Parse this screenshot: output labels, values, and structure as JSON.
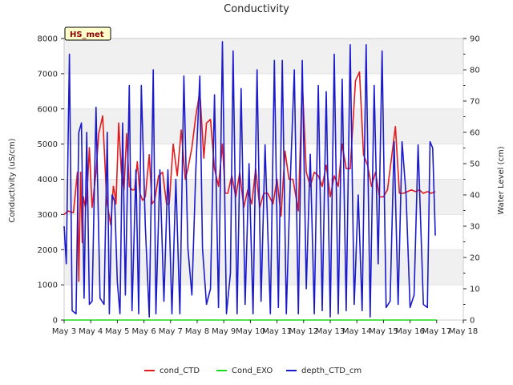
{
  "chart_data": {
    "type": "line",
    "title": "Conductivity",
    "badge": "HS_met",
    "ylabel": "Conductivity (uS/cm)",
    "y2label": "Water Level (cm)",
    "ylim": [
      0,
      8000
    ],
    "y2lim": [
      0,
      90
    ],
    "yticks": [
      0,
      1000,
      2000,
      3000,
      4000,
      5000,
      6000,
      7000,
      8000
    ],
    "y2ticks": [
      0,
      10,
      20,
      30,
      40,
      50,
      60,
      70,
      80,
      90
    ],
    "xlim": [
      3,
      18
    ],
    "xticks": [
      3,
      4,
      5,
      6,
      7,
      8,
      9,
      10,
      11,
      12,
      13,
      14,
      15,
      16,
      17,
      18
    ],
    "xtick_labels": [
      "May 3",
      "May 4",
      "May 5",
      "May 6",
      "May 7",
      "May 8",
      "May 9",
      "May 10",
      "May 11",
      "May 12",
      "May 13",
      "May 14",
      "May 15",
      "May 16",
      "May 17",
      "May 18"
    ],
    "grid": "horizontal bands",
    "legend_position": "bottom-center",
    "series": [
      {
        "name": "cond_CTD",
        "axis": "left",
        "color": "#e41a1c",
        "x": [
          3.0,
          3.15,
          3.35,
          3.5,
          3.55,
          3.62,
          3.68,
          3.72,
          3.8,
          3.85,
          3.95,
          4.05,
          4.2,
          4.3,
          4.45,
          4.6,
          4.75,
          4.85,
          4.9,
          4.95,
          5.05,
          5.15,
          5.25,
          5.35,
          5.45,
          5.55,
          5.65,
          5.75,
          5.85,
          5.95,
          6.05,
          6.2,
          6.3,
          6.4,
          6.55,
          6.7,
          6.85,
          6.95,
          7.1,
          7.25,
          7.4,
          7.55,
          7.65,
          7.8,
          7.95,
          8.1,
          8.25,
          8.35,
          8.5,
          8.65,
          8.8,
          8.95,
          9.05,
          9.15,
          9.3,
          9.45,
          9.6,
          9.75,
          9.9,
          10.05,
          10.2,
          10.35,
          10.5,
          10.65,
          10.85,
          11.0,
          11.15,
          11.3,
          11.45,
          11.6,
          11.8,
          11.95,
          12.1,
          12.25,
          12.4,
          12.55,
          12.7,
          12.85,
          13.0,
          13.15,
          13.3,
          13.45,
          13.6,
          13.75,
          13.95,
          14.1,
          14.25,
          14.4,
          14.55,
          14.7,
          14.85,
          15.0,
          15.15,
          15.3,
          15.45,
          15.6,
          15.75,
          15.9,
          16.05,
          16.2,
          16.35,
          16.5,
          16.65,
          16.8,
          16.95
        ],
        "values": [
          3000,
          3100,
          3050,
          4200,
          1100,
          4200,
          2200,
          3500,
          3200,
          3400,
          4900,
          3200,
          4200,
          5300,
          5800,
          3400,
          2700,
          3800,
          3600,
          3300,
          5600,
          4200,
          3700,
          5300,
          3800,
          3700,
          3700,
          4500,
          3600,
          3400,
          3500,
          4700,
          3300,
          3400,
          4100,
          4200,
          3300,
          3300,
          5000,
          4100,
          5400,
          4000,
          4300,
          4900,
          5800,
          6500,
          4600,
          5600,
          5700,
          4300,
          3800,
          5000,
          3600,
          3600,
          4100,
          3500,
          4200,
          3200,
          3700,
          3300,
          4300,
          3200,
          3600,
          3600,
          3300,
          4000,
          2950,
          4800,
          4000,
          4000,
          3100,
          6800,
          4200,
          3800,
          4200,
          4100,
          3800,
          4400,
          3500,
          4100,
          3800,
          5000,
          4300,
          4300,
          6800,
          7050,
          4700,
          4400,
          3800,
          4200,
          3500,
          3500,
          3700,
          4600,
          5500,
          3600,
          3600,
          3650,
          3700,
          3650,
          3700,
          3600,
          3650,
          3600,
          3650
        ]
      },
      {
        "name": "Cond_EXO",
        "axis": "left",
        "color": "#1ada1a",
        "x": [
          3,
          17
        ],
        "values": [
          0,
          0
        ]
      },
      {
        "name": "depth_CTD_cm",
        "axis": "right",
        "color": "#1a1acc",
        "x": [
          3.0,
          3.08,
          3.2,
          3.3,
          3.45,
          3.55,
          3.65,
          3.75,
          3.85,
          3.95,
          4.05,
          4.2,
          4.35,
          4.5,
          4.62,
          4.7,
          4.8,
          4.9,
          5.0,
          5.1,
          5.2,
          5.3,
          5.45,
          5.55,
          5.7,
          5.8,
          5.9,
          6.05,
          6.2,
          6.35,
          6.45,
          6.6,
          6.75,
          6.9,
          7.05,
          7.2,
          7.35,
          7.5,
          7.65,
          7.8,
          7.95,
          8.1,
          8.2,
          8.35,
          8.5,
          8.65,
          8.8,
          8.95,
          9.1,
          9.25,
          9.35,
          9.5,
          9.65,
          9.8,
          9.95,
          10.1,
          10.25,
          10.4,
          10.55,
          10.75,
          10.9,
          11.05,
          11.2,
          11.35,
          11.5,
          11.65,
          11.8,
          11.95,
          12.1,
          12.25,
          12.4,
          12.55,
          12.7,
          12.85,
          13.0,
          13.15,
          13.3,
          13.45,
          13.6,
          13.75,
          13.9,
          14.05,
          14.2,
          14.35,
          14.5,
          14.65,
          14.8,
          14.95,
          15.1,
          15.25,
          15.4,
          15.55,
          15.7,
          15.85,
          16.0,
          16.15,
          16.3,
          16.5,
          16.65,
          16.75,
          16.85,
          16.95
        ],
        "values": [
          30,
          18,
          85,
          3,
          2,
          60,
          63,
          7,
          60,
          5,
          6,
          68,
          7,
          5,
          60,
          2,
          40,
          38,
          12,
          2,
          63,
          8,
          75,
          3,
          48,
          2,
          75,
          30,
          1,
          80,
          2,
          48,
          6,
          48,
          2,
          45,
          2,
          78,
          23,
          8,
          48,
          78,
          23,
          5,
          10,
          72,
          4,
          89,
          2,
          15,
          86,
          2,
          74,
          5,
          50,
          2,
          80,
          6,
          56,
          2,
          83,
          4,
          83,
          2,
          45,
          80,
          2,
          83,
          10,
          53,
          2,
          75,
          3,
          73,
          1,
          85,
          2,
          77,
          3,
          88,
          5,
          40,
          3,
          88,
          1,
          75,
          18,
          86,
          4,
          6,
          57,
          5,
          57,
          40,
          4,
          8,
          56,
          5,
          4,
          57,
          55,
          27
        ]
      }
    ]
  }
}
